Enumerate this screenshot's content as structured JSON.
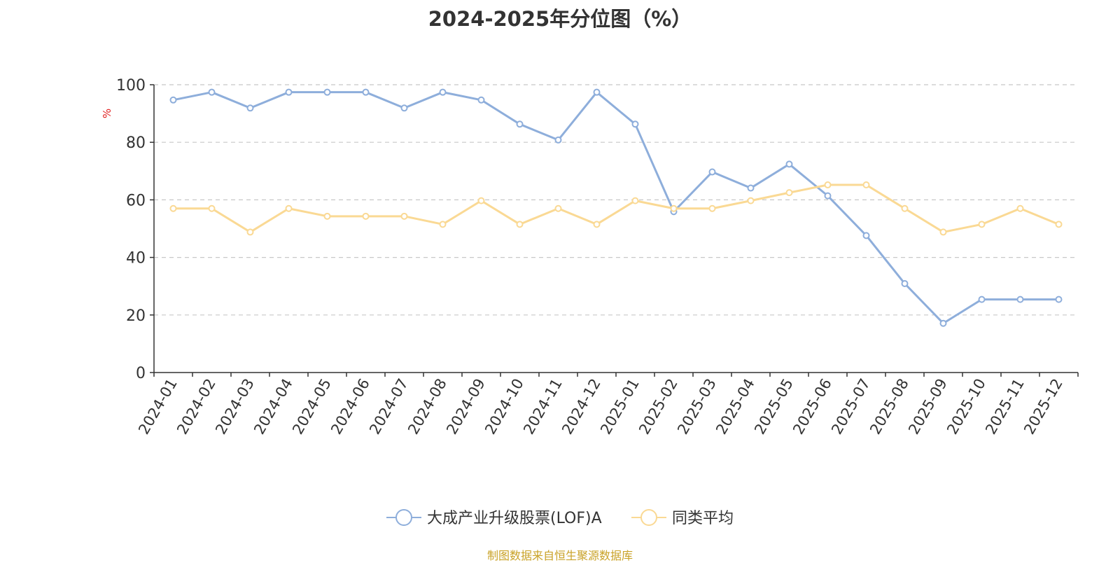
{
  "chart_data": {
    "type": "line",
    "title": "2024-2025年分位图（%）",
    "ylabel": "%",
    "xlabel": "",
    "ylim": [
      0,
      100
    ],
    "yticks": [
      0,
      20,
      40,
      60,
      80,
      100
    ],
    "grid": "horizontal-dashed",
    "legend_position": "bottom-center",
    "categories": [
      "2024-01",
      "2024-02",
      "2024-03",
      "2024-04",
      "2024-05",
      "2024-06",
      "2024-07",
      "2024-08",
      "2024-09",
      "2024-10",
      "2024-11",
      "2024-12",
      "2025-01",
      "2025-02",
      "2025-03",
      "2025-04",
      "2025-05",
      "2025-06",
      "2025-07",
      "2025-08",
      "2025-09",
      "2025-10",
      "2025-11",
      "2025-12"
    ],
    "series": [
      {
        "name": "大成产业升级股票(LOF)A",
        "color": "#8eaedb",
        "values": [
          94.7,
          97.4,
          91.9,
          97.4,
          97.4,
          97.4,
          91.9,
          97.4,
          94.7,
          86.3,
          80.8,
          97.4,
          86.3,
          55.9,
          69.7,
          64.1,
          72.4,
          61.4,
          47.6,
          30.9,
          17.1,
          25.4,
          25.4,
          25.4
        ]
      },
      {
        "name": "同类平均",
        "color": "#fad994",
        "values": [
          57.0,
          57.0,
          48.8,
          57.0,
          54.3,
          54.3,
          54.3,
          51.5,
          59.7,
          51.5,
          57.0,
          51.5,
          59.7,
          57.0,
          57.0,
          59.7,
          62.5,
          65.2,
          65.2,
          57.0,
          48.8,
          51.5,
          57.0,
          51.5
        ]
      }
    ]
  },
  "source_note": "制图数据来自恒生聚源数据库"
}
